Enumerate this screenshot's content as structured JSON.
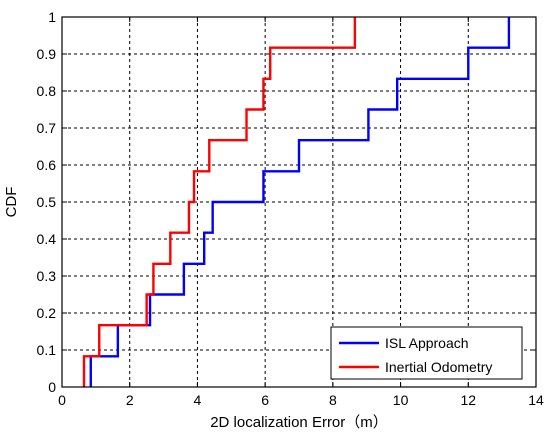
{
  "chart_data": {
    "type": "line",
    "step": true,
    "title": "",
    "xlabel": "2D localization Error（m）",
    "ylabel": "CDF",
    "xlim": [
      0,
      14
    ],
    "ylim": [
      0,
      1
    ],
    "xticks": [
      0,
      2,
      4,
      6,
      8,
      10,
      12,
      14
    ],
    "yticks": [
      0,
      0.1,
      0.2,
      0.3,
      0.4,
      0.5,
      0.6,
      0.7,
      0.8,
      0.9,
      1
    ],
    "xtick_labels": [
      "0",
      "2",
      "4",
      "6",
      "8",
      "10",
      "12",
      "14"
    ],
    "ytick_labels": [
      "0",
      "0.1",
      "0.2",
      "0.3",
      "0.4",
      "0.5",
      "0.6",
      "0.7",
      "0.8",
      "0.9",
      "1"
    ],
    "grid": true,
    "legend_position": "bottom-right",
    "series": [
      {
        "name": "ISL Approach",
        "color": "#0000ff",
        "x": [
          0.85,
          1.65,
          2.6,
          3.6,
          4.2,
          4.45,
          5.95,
          7.0,
          9.05,
          9.9,
          12.0,
          13.2
        ],
        "y": [
          0.083,
          0.167,
          0.25,
          0.333,
          0.417,
          0.5,
          0.583,
          0.667,
          0.75,
          0.833,
          0.917,
          1.0
        ]
      },
      {
        "name": "Inertial Odometry",
        "color": "#ff0000",
        "x": [
          0.65,
          1.1,
          2.5,
          2.7,
          3.2,
          3.75,
          3.9,
          4.35,
          5.45,
          5.95,
          6.15,
          8.65
        ],
        "y": [
          0.083,
          0.167,
          0.25,
          0.333,
          0.417,
          0.5,
          0.583,
          0.667,
          0.75,
          0.833,
          0.917,
          1.0
        ]
      }
    ]
  }
}
